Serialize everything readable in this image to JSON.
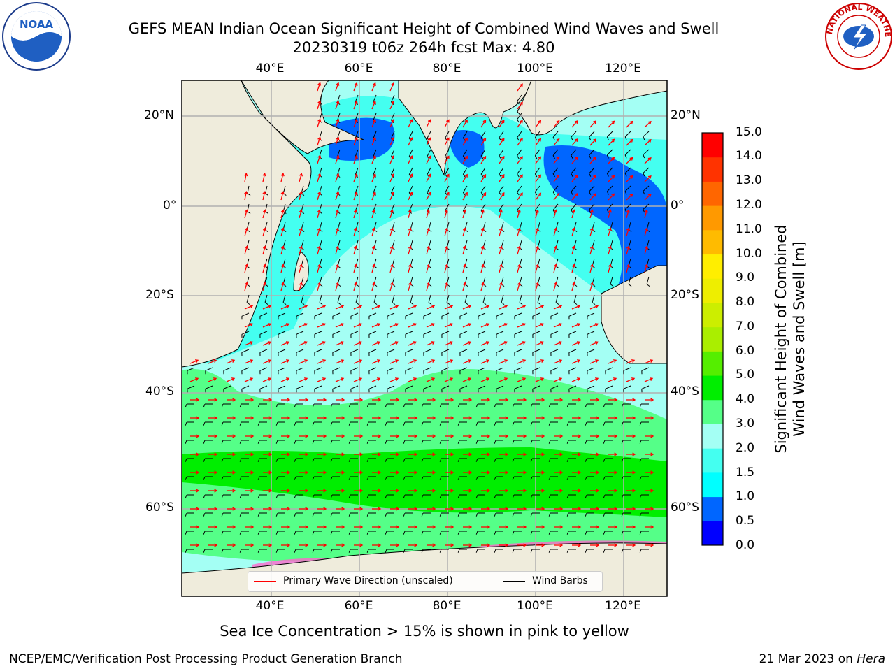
{
  "title": {
    "line1": "GEFS MEAN Indian Ocean Significant Height of Combined Wind Waves and Swell",
    "line2": "20230319 t06z 264h fcst   Max: 4.80"
  },
  "logos": {
    "left": "NOAA",
    "right": "NATIONAL WEATHER SERVICE"
  },
  "map": {
    "lon_labels": [
      "40°E",
      "60°E",
      "80°E",
      "100°E",
      "120°E"
    ],
    "lat_labels_left": [
      "20°N",
      "0°",
      "20°S",
      "40°S",
      "60°S"
    ],
    "lat_labels_right": [
      "20°N",
      "0°",
      "20°S",
      "40°S",
      "60°S"
    ],
    "colors": {
      "land": "#efecdc",
      "grid": "#b0b0b0",
      "wave_arrow": "#ff0000",
      "wind_barb": "#000000"
    }
  },
  "legend": {
    "wave": "Primary Wave Direction (unscaled)",
    "wind": "Wind Barbs"
  },
  "colorbar": {
    "ticks": [
      "0.0",
      "0.5",
      "1.0",
      "1.5",
      "2.0",
      "3.0",
      "4.0",
      "5.0",
      "6.0",
      "7.0",
      "8.0",
      "9.0",
      "10.0",
      "11.0",
      "12.0",
      "13.0",
      "14.0",
      "15.0"
    ],
    "colors": [
      "#0000ff",
      "#0066ff",
      "#00ffff",
      "#44fff0",
      "#a4fff4",
      "#55ff88",
      "#00ee00",
      "#55ee00",
      "#aaee00",
      "#ccee00",
      "#eeee00",
      "#ffee00",
      "#ffbb00",
      "#ff9900",
      "#ff6600",
      "#ff3300",
      "#ff0000"
    ],
    "label_line1": "Significant Height of Combined",
    "label_line2": "Wind Waves and Swell [m]"
  },
  "footnote": "Sea Ice Concentration > 15% is shown in pink to yellow",
  "credit_left": "NCEP/EMC/Verification Post Processing Product Generation Branch",
  "credit_right_prefix": "21 Mar 2023 on ",
  "credit_right_host": "Hera"
}
